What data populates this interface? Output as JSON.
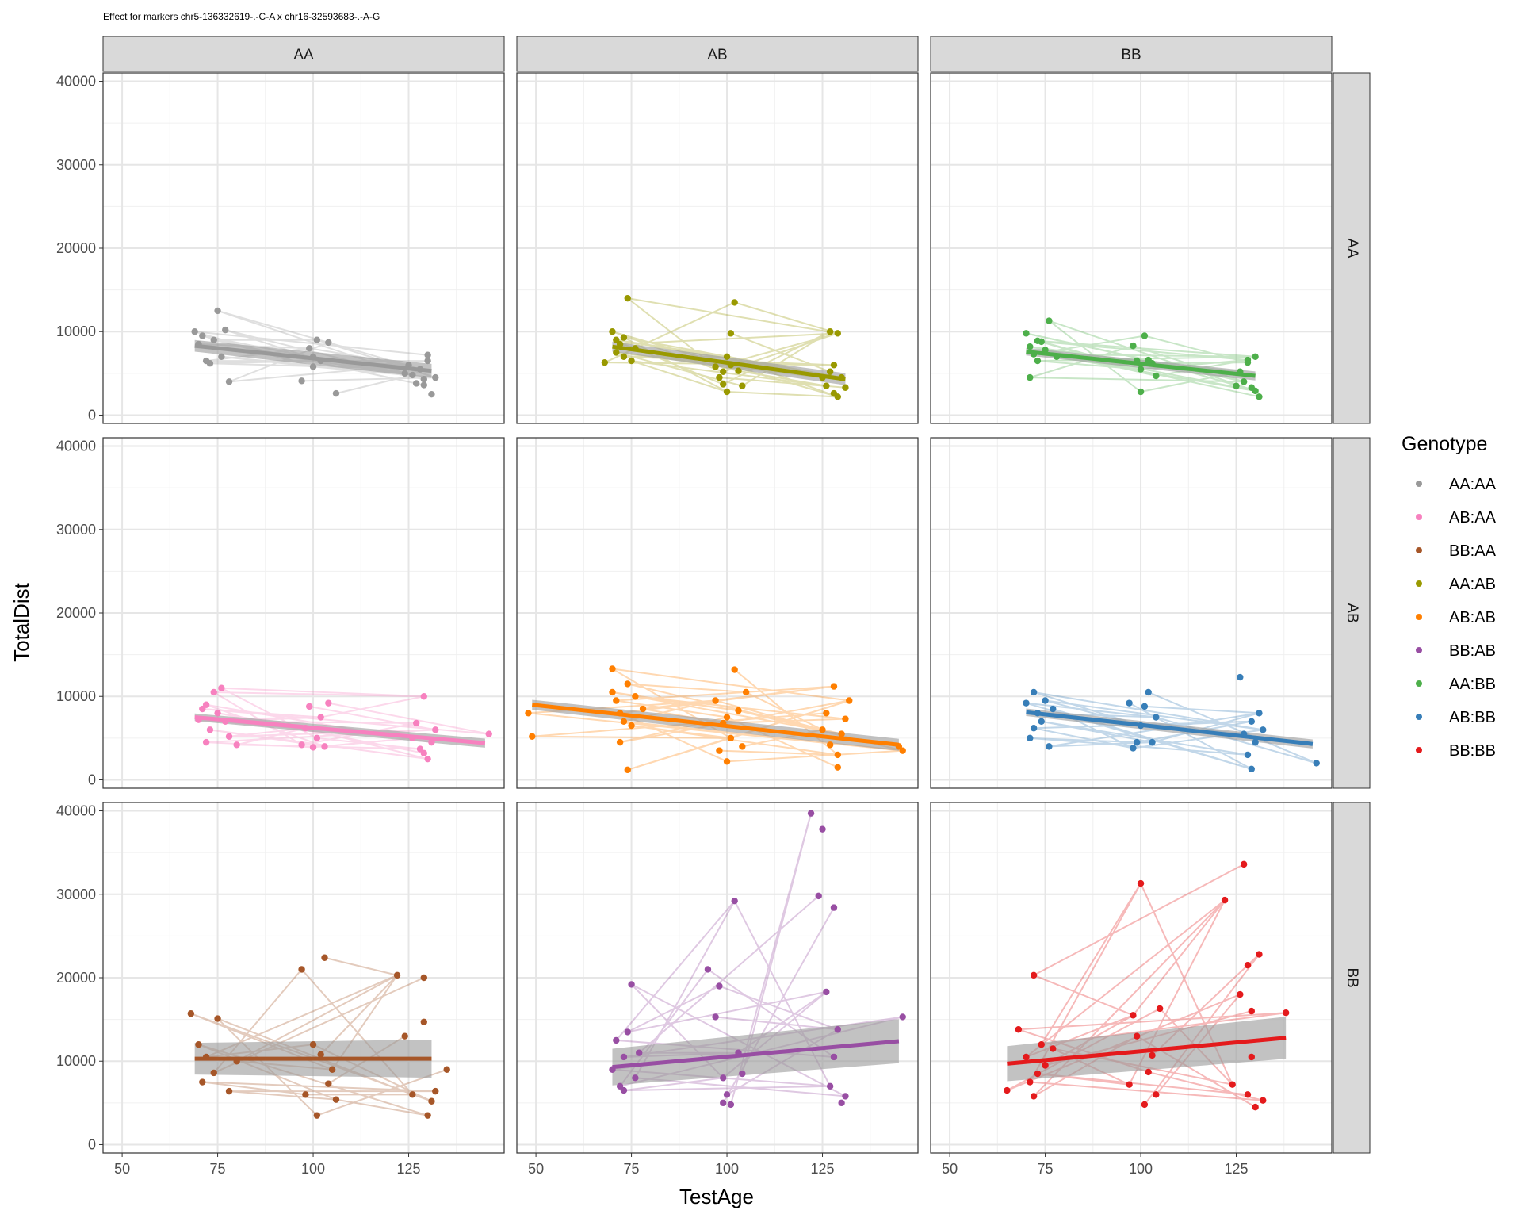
{
  "page_title": "Effect for markers chr5-136332619-.-C-A x chr16-32593683-.-A-G",
  "legend": {
    "title": "Genotype",
    "entries": [
      {
        "label": "AA:AA",
        "color": "#999999"
      },
      {
        "label": "AB:AA",
        "color": "#f781bf"
      },
      {
        "label": "BB:AA",
        "color": "#a65628"
      },
      {
        "label": "AA:AB",
        "color": "#999900"
      },
      {
        "label": "AB:AB",
        "color": "#ff7f00"
      },
      {
        "label": "BB:AB",
        "color": "#984ea3"
      },
      {
        "label": "AA:BB",
        "color": "#4daf4a"
      },
      {
        "label": "AB:BB",
        "color": "#377eb8"
      },
      {
        "label": "BB:BB",
        "color": "#e41a1c"
      }
    ]
  },
  "chart_data": {
    "type": "scatter",
    "title": "Effect for markers chr5-136332619-.-C-A x chr16-32593683-.-A-G",
    "xlabel": "TestAge",
    "ylabel": "TotalDist",
    "xlim": [
      45,
      150
    ],
    "ylim": [
      -1000,
      41000
    ],
    "x_ticks": [
      50,
      75,
      100,
      125
    ],
    "y_ticks": [
      0,
      10000,
      20000,
      30000,
      40000
    ],
    "col_strips": [
      "AA",
      "AB",
      "BB"
    ],
    "row_strips": [
      "AA",
      "AB",
      "BB"
    ],
    "grid": true,
    "legend_position": "right",
    "facets": [
      {
        "row": 0,
        "col": 0,
        "genotype": "AA:AA",
        "color": "#999999",
        "fit": {
          "x": [
            69,
            131
          ],
          "y": [
            8300,
            5300
          ],
          "ci": 700
        },
        "points": [
          [
            69,
            10000
          ],
          [
            70,
            8500
          ],
          [
            71,
            9500
          ],
          [
            72,
            6500
          ],
          [
            73,
            6200
          ],
          [
            74,
            9000
          ],
          [
            75,
            12500
          ],
          [
            76,
            7000
          ],
          [
            78,
            4000
          ],
          [
            77,
            10200
          ],
          [
            99,
            8000
          ],
          [
            100,
            7000
          ],
          [
            101,
            9000
          ],
          [
            100,
            5800
          ],
          [
            102,
            6500
          ],
          [
            104,
            8700
          ],
          [
            97,
            4100
          ],
          [
            106,
            2600
          ],
          [
            124,
            5000
          ],
          [
            125,
            6000
          ],
          [
            126,
            4800
          ],
          [
            127,
            3800
          ],
          [
            128,
            5500
          ],
          [
            129,
            4300
          ],
          [
            130,
            7200
          ],
          [
            131,
            2500
          ],
          [
            129,
            3600
          ],
          [
            130,
            6500
          ],
          [
            132,
            4500
          ]
        ]
      },
      {
        "row": 0,
        "col": 1,
        "genotype": "AA:AB",
        "color": "#999900",
        "fit": {
          "x": [
            70,
            131
          ],
          "y": [
            8200,
            4300
          ],
          "ci": 600
        },
        "points": [
          [
            68,
            6300
          ],
          [
            70,
            10000
          ],
          [
            71,
            9000
          ],
          [
            72,
            8500
          ],
          [
            73,
            7000
          ],
          [
            74,
            14000
          ],
          [
            75,
            6500
          ],
          [
            73,
            9300
          ],
          [
            76,
            8000
          ],
          [
            71,
            7500
          ],
          [
            98,
            4500
          ],
          [
            99,
            3700
          ],
          [
            100,
            2800
          ],
          [
            101,
            6000
          ],
          [
            100,
            7000
          ],
          [
            102,
            13500
          ],
          [
            103,
            5300
          ],
          [
            101,
            9800
          ],
          [
            104,
            3500
          ],
          [
            97,
            5800
          ],
          [
            99,
            5200
          ],
          [
            125,
            4500
          ],
          [
            126,
            3500
          ],
          [
            127,
            10000
          ],
          [
            128,
            6000
          ],
          [
            129,
            2200
          ],
          [
            130,
            4500
          ],
          [
            131,
            3300
          ],
          [
            129,
            9800
          ],
          [
            127,
            5200
          ],
          [
            128,
            2600
          ]
        ]
      },
      {
        "row": 0,
        "col": 2,
        "genotype": "AA:BB",
        "color": "#4daf4a",
        "fit": {
          "x": [
            70,
            130
          ],
          "y": [
            7600,
            4700
          ],
          "ci": 450
        },
        "points": [
          [
            70,
            9800
          ],
          [
            71,
            8200
          ],
          [
            72,
            7300
          ],
          [
            73,
            6500
          ],
          [
            74,
            8800
          ],
          [
            76,
            11300
          ],
          [
            71,
            4500
          ],
          [
            75,
            7800
          ],
          [
            78,
            7000
          ],
          [
            73,
            8900
          ],
          [
            99,
            6500
          ],
          [
            100,
            5500
          ],
          [
            101,
            9500
          ],
          [
            100,
            2800
          ],
          [
            102,
            6600
          ],
          [
            103,
            6200
          ],
          [
            98,
            8300
          ],
          [
            104,
            4700
          ],
          [
            125,
            3500
          ],
          [
            126,
            5200
          ],
          [
            127,
            4000
          ],
          [
            128,
            6600
          ],
          [
            129,
            3300
          ],
          [
            130,
            7000
          ],
          [
            131,
            2200
          ],
          [
            130,
            2900
          ],
          [
            128,
            6300
          ]
        ]
      },
      {
        "row": 1,
        "col": 0,
        "genotype": "AB:AA",
        "color": "#f781bf",
        "fit": {
          "x": [
            69,
            145
          ],
          "y": [
            7500,
            4400
          ],
          "ci": 450
        },
        "points": [
          [
            70,
            7200
          ],
          [
            71,
            8500
          ],
          [
            72,
            4500
          ],
          [
            73,
            6000
          ],
          [
            74,
            10500
          ],
          [
            75,
            8000
          ],
          [
            76,
            11000
          ],
          [
            77,
            7000
          ],
          [
            78,
            5200
          ],
          [
            80,
            4200
          ],
          [
            72,
            9000
          ],
          [
            98,
            6200
          ],
          [
            99,
            8800
          ],
          [
            100,
            3900
          ],
          [
            101,
            5000
          ],
          [
            102,
            7500
          ],
          [
            103,
            4000
          ],
          [
            104,
            9200
          ],
          [
            97,
            4200
          ],
          [
            126,
            5000
          ],
          [
            127,
            6800
          ],
          [
            128,
            3700
          ],
          [
            129,
            10000
          ],
          [
            130,
            2500
          ],
          [
            131,
            4500
          ],
          [
            132,
            6000
          ],
          [
            129,
            3200
          ],
          [
            146,
            5500
          ]
        ]
      },
      {
        "row": 1,
        "col": 1,
        "genotype": "AB:AB",
        "color": "#ff7f00",
        "fit": {
          "x": [
            49,
            145
          ],
          "y": [
            9000,
            4200
          ],
          "ci": 600
        },
        "points": [
          [
            48,
            8000
          ],
          [
            49,
            5200
          ],
          [
            70,
            13300
          ],
          [
            71,
            9500
          ],
          [
            72,
            8000
          ],
          [
            73,
            7000
          ],
          [
            74,
            11500
          ],
          [
            75,
            6500
          ],
          [
            76,
            10000
          ],
          [
            74,
            1200
          ],
          [
            72,
            4500
          ],
          [
            78,
            8500
          ],
          [
            70,
            10500
          ],
          [
            99,
            6800
          ],
          [
            100,
            7500
          ],
          [
            101,
            5000
          ],
          [
            102,
            13200
          ],
          [
            103,
            8300
          ],
          [
            104,
            4000
          ],
          [
            97,
            9500
          ],
          [
            98,
            3500
          ],
          [
            100,
            2200
          ],
          [
            105,
            10500
          ],
          [
            125,
            6000
          ],
          [
            126,
            8000
          ],
          [
            127,
            4200
          ],
          [
            128,
            11200
          ],
          [
            129,
            3000
          ],
          [
            130,
            5500
          ],
          [
            131,
            7300
          ],
          [
            129,
            1500
          ],
          [
            132,
            9500
          ],
          [
            146,
            3500
          ],
          [
            145,
            4000
          ]
        ]
      },
      {
        "row": 1,
        "col": 2,
        "genotype": "AB:BB",
        "color": "#377eb8",
        "fit": {
          "x": [
            70,
            145
          ],
          "y": [
            8100,
            4300
          ],
          "ci": 450
        },
        "points": [
          [
            70,
            9200
          ],
          [
            71,
            5000
          ],
          [
            72,
            10500
          ],
          [
            73,
            8000
          ],
          [
            74,
            7000
          ],
          [
            75,
            9500
          ],
          [
            76,
            4000
          ],
          [
            77,
            8500
          ],
          [
            72,
            6200
          ],
          [
            99,
            4500
          ],
          [
            100,
            6500
          ],
          [
            101,
            8800
          ],
          [
            102,
            10500
          ],
          [
            103,
            4500
          ],
          [
            104,
            7500
          ],
          [
            97,
            9200
          ],
          [
            98,
            3800
          ],
          [
            126,
            12300
          ],
          [
            127,
            5500
          ],
          [
            128,
            3000
          ],
          [
            129,
            7000
          ],
          [
            130,
            4500
          ],
          [
            131,
            8000
          ],
          [
            129,
            1300
          ],
          [
            132,
            6000
          ],
          [
            146,
            2000
          ]
        ]
      },
      {
        "row": 2,
        "col": 0,
        "genotype": "BB:AA",
        "color": "#a65628",
        "fit": {
          "x": [
            69,
            131
          ],
          "y": [
            10300,
            10300
          ],
          "ci": 1900
        },
        "points": [
          [
            68,
            15700
          ],
          [
            70,
            12000
          ],
          [
            71,
            7500
          ],
          [
            72,
            10500
          ],
          [
            75,
            15100
          ],
          [
            78,
            6400
          ],
          [
            74,
            8600
          ],
          [
            80,
            10000
          ],
          [
            97,
            21000
          ],
          [
            98,
            6000
          ],
          [
            100,
            12000
          ],
          [
            101,
            3500
          ],
          [
            103,
            22400
          ],
          [
            104,
            7300
          ],
          [
            105,
            9000
          ],
          [
            106,
            5400
          ],
          [
            102,
            10800
          ],
          [
            122,
            20300
          ],
          [
            124,
            13000
          ],
          [
            126,
            6000
          ],
          [
            129,
            14700
          ],
          [
            130,
            3500
          ],
          [
            131,
            5200
          ],
          [
            129,
            20000
          ],
          [
            132,
            6400
          ],
          [
            135,
            9000
          ]
        ]
      },
      {
        "row": 2,
        "col": 1,
        "genotype": "BB:AB",
        "color": "#984ea3",
        "fit": {
          "x": [
            70,
            145
          ],
          "y": [
            9300,
            12400
          ],
          "ci": 2200
        },
        "points": [
          [
            70,
            9000
          ],
          [
            71,
            12500
          ],
          [
            72,
            7000
          ],
          [
            73,
            10500
          ],
          [
            74,
            13500
          ],
          [
            75,
            19200
          ],
          [
            76,
            8000
          ],
          [
            73,
            6500
          ],
          [
            77,
            11000
          ],
          [
            95,
            21000
          ],
          [
            97,
            15300
          ],
          [
            98,
            19000
          ],
          [
            99,
            8000
          ],
          [
            100,
            6000
          ],
          [
            101,
            4800
          ],
          [
            102,
            29200
          ],
          [
            103,
            11000
          ],
          [
            104,
            8500
          ],
          [
            99,
            5000
          ],
          [
            122,
            39700
          ],
          [
            124,
            29800
          ],
          [
            125,
            37800
          ],
          [
            126,
            18300
          ],
          [
            127,
            7000
          ],
          [
            128,
            28400
          ],
          [
            129,
            13800
          ],
          [
            130,
            5000
          ],
          [
            128,
            10500
          ],
          [
            131,
            5800
          ],
          [
            146,
            15300
          ]
        ]
      },
      {
        "row": 2,
        "col": 2,
        "genotype": "BB:BB",
        "color": "#e41a1c",
        "fit": {
          "x": [
            65,
            138
          ],
          "y": [
            9700,
            12800
          ],
          "ci": 2100
        },
        "points": [
          [
            65,
            6500
          ],
          [
            68,
            13800
          ],
          [
            70,
            10500
          ],
          [
            71,
            7500
          ],
          [
            72,
            20300
          ],
          [
            73,
            8500
          ],
          [
            74,
            12000
          ],
          [
            75,
            9500
          ],
          [
            72,
            5800
          ],
          [
            77,
            11500
          ],
          [
            98,
            15500
          ],
          [
            99,
            13000
          ],
          [
            100,
            31300
          ],
          [
            101,
            4800
          ],
          [
            102,
            8700
          ],
          [
            103,
            10700
          ],
          [
            104,
            6000
          ],
          [
            105,
            16300
          ],
          [
            97,
            7200
          ],
          [
            122,
            29300
          ],
          [
            124,
            7200
          ],
          [
            126,
            18000
          ],
          [
            127,
            33600
          ],
          [
            128,
            21500
          ],
          [
            129,
            10500
          ],
          [
            130,
            4500
          ],
          [
            131,
            22800
          ],
          [
            129,
            16000
          ],
          [
            132,
            5300
          ],
          [
            128,
            6000
          ],
          [
            138,
            15800
          ]
        ]
      }
    ]
  }
}
